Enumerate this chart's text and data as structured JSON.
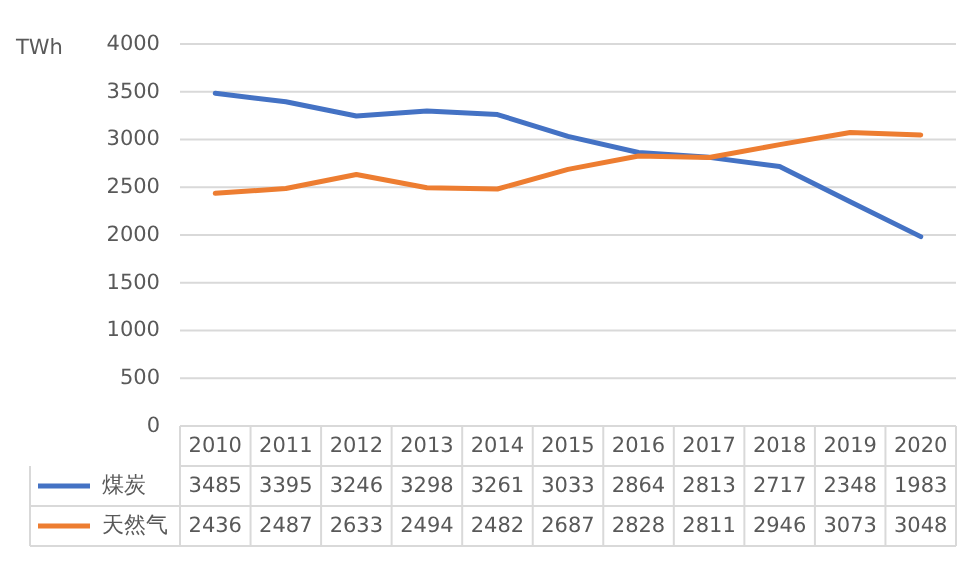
{
  "chart_data": {
    "type": "line",
    "ylabel": "TWh",
    "categories": [
      "2010",
      "2011",
      "2012",
      "2013",
      "2014",
      "2015",
      "2016",
      "2017",
      "2018",
      "2019",
      "2020"
    ],
    "series": [
      {
        "name": "煤炭",
        "color": "#4472c4",
        "values": [
          3485,
          3395,
          3246,
          3298,
          3261,
          3033,
          2864,
          2813,
          2717,
          2348,
          1983
        ]
      },
      {
        "name": "天然气",
        "color": "#ed7d31",
        "values": [
          2436,
          2487,
          2633,
          2494,
          2482,
          2687,
          2828,
          2811,
          2946,
          3073,
          3048
        ]
      }
    ],
    "ylim": [
      0,
      4000
    ],
    "yticks": [
      0,
      500,
      1000,
      1500,
      2000,
      2500,
      3000,
      3500,
      4000
    ],
    "grid": "y",
    "data_labels": true,
    "legend": "bottom",
    "marker": "none",
    "line_style": "solid"
  }
}
